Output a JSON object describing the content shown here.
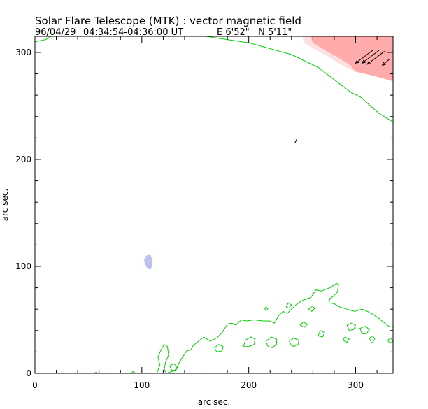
{
  "chart_data": {
    "type": "scatter",
    "title": "Solar Flare Telescope (MTK) : vector magnetic field",
    "subtitle": {
      "date": "96/04/29",
      "time_range": "04:34:54-04:36:00 UT",
      "position": "E 6'52\"   N 5'11\""
    },
    "xlabel": "arc sec.",
    "ylabel": "arc sec.",
    "xlim": [
      0,
      335
    ],
    "ylim": [
      0,
      315
    ],
    "x_ticks": [
      0,
      100,
      200,
      300
    ],
    "y_ticks": [
      0,
      100,
      200,
      300
    ],
    "x_tick_labels": [
      "0",
      "100",
      "200",
      "300"
    ],
    "y_tick_labels": [
      "0",
      "100",
      "200",
      "300"
    ],
    "grid": false,
    "colors": {
      "contour": "#00d000",
      "positive_field": "#ff8080",
      "negative_field": "#9fa6e6",
      "vectors": "#000000"
    },
    "limb_contour": [
      [
        0,
        310
      ],
      [
        10,
        312
      ],
      [
        15,
        315
      ],
      [
        160,
        315
      ],
      [
        200,
        309
      ],
      [
        240,
        298
      ],
      [
        265,
        286
      ],
      [
        282,
        273
      ],
      [
        295,
        263
      ],
      [
        305,
        258
      ],
      [
        315,
        249
      ],
      [
        322,
        243
      ],
      [
        330,
        238
      ],
      [
        335,
        235
      ]
    ],
    "lower_contour": [
      [
        114,
        0
      ],
      [
        117,
        8
      ],
      [
        115,
        15
      ],
      [
        118,
        22
      ],
      [
        121,
        27
      ],
      [
        124,
        25
      ],
      [
        125,
        17
      ],
      [
        122,
        10
      ],
      [
        121,
        4
      ],
      [
        123,
        0
      ],
      [
        132,
        3
      ],
      [
        135,
        10
      ],
      [
        138,
        15
      ],
      [
        142,
        21
      ],
      [
        146,
        22
      ],
      [
        148,
        26
      ],
      [
        153,
        30
      ],
      [
        158,
        34
      ],
      [
        164,
        30
      ],
      [
        170,
        33
      ],
      [
        175,
        38
      ],
      [
        180,
        46
      ],
      [
        184,
        47
      ],
      [
        188,
        45
      ],
      [
        193,
        50
      ],
      [
        198,
        49
      ],
      [
        205,
        50
      ],
      [
        213,
        49
      ],
      [
        219,
        49
      ],
      [
        224,
        47
      ],
      [
        228,
        54
      ],
      [
        232,
        58
      ],
      [
        236,
        56
      ],
      [
        240,
        60
      ],
      [
        244,
        64
      ],
      [
        250,
        68
      ],
      [
        258,
        71
      ],
      [
        263,
        78
      ],
      [
        268,
        77
      ],
      [
        273,
        79
      ],
      [
        276,
        80
      ],
      [
        282,
        84
      ],
      [
        284,
        83
      ],
      [
        283,
        76
      ],
      [
        279,
        72
      ],
      [
        276,
        70
      ],
      [
        275,
        66
      ],
      [
        280,
        65
      ],
      [
        285,
        62
      ],
      [
        292,
        60
      ],
      [
        299,
        58
      ],
      [
        306,
        60
      ],
      [
        311,
        58
      ],
      [
        315,
        56
      ],
      [
        321,
        52
      ],
      [
        326,
        48
      ],
      [
        331,
        44
      ],
      [
        335,
        43
      ]
    ],
    "small_contours": [
      [
        [
          218,
          25
        ],
        [
          216,
          30
        ],
        [
          221,
          34
        ],
        [
          226,
          32
        ],
        [
          226,
          27
        ],
        [
          222,
          24
        ],
        [
          218,
          25
        ]
      ],
      [
        [
          240,
          26
        ],
        [
          238,
          30
        ],
        [
          242,
          33
        ],
        [
          247,
          31
        ],
        [
          246,
          27
        ],
        [
          242,
          25
        ],
        [
          240,
          26
        ]
      ],
      [
        [
          170,
          20
        ],
        [
          168,
          24
        ],
        [
          172,
          27
        ],
        [
          176,
          25
        ],
        [
          175,
          21
        ],
        [
          170,
          20
        ]
      ],
      [
        [
          195,
          25
        ],
        [
          197,
          31
        ],
        [
          202,
          34
        ],
        [
          206,
          32
        ],
        [
          205,
          27
        ],
        [
          200,
          25
        ],
        [
          195,
          25
        ]
      ],
      [
        [
          288,
          31
        ],
        [
          290,
          34
        ],
        [
          294,
          32
        ],
        [
          292,
          29
        ],
        [
          288,
          31
        ]
      ],
      [
        [
          294,
          40
        ],
        [
          292,
          45
        ],
        [
          296,
          47
        ],
        [
          300,
          45
        ],
        [
          298,
          41
        ],
        [
          294,
          40
        ]
      ],
      [
        [
          306,
          37
        ],
        [
          304,
          42
        ],
        [
          309,
          44
        ],
        [
          313,
          41
        ],
        [
          310,
          37
        ],
        [
          306,
          37
        ]
      ],
      [
        [
          315,
          28
        ],
        [
          313,
          33
        ],
        [
          316,
          35
        ],
        [
          318,
          32
        ],
        [
          315,
          28
        ]
      ],
      [
        [
          248,
          45
        ],
        [
          251,
          48
        ],
        [
          255,
          46
        ],
        [
          252,
          43
        ],
        [
          248,
          45
        ]
      ],
      [
        [
          265,
          35
        ],
        [
          267,
          40
        ],
        [
          271,
          38
        ],
        [
          269,
          34
        ],
        [
          265,
          35
        ]
      ],
      [
        [
          256,
          60
        ],
        [
          259,
          63
        ],
        [
          262,
          61
        ],
        [
          259,
          58
        ],
        [
          256,
          60
        ]
      ],
      [
        [
          235,
          62
        ],
        [
          237,
          66
        ],
        [
          240,
          64
        ],
        [
          238,
          61
        ],
        [
          235,
          62
        ]
      ],
      [
        [
          128,
          3
        ],
        [
          126,
          7
        ],
        [
          130,
          9
        ],
        [
          133,
          6
        ],
        [
          131,
          3
        ],
        [
          128,
          3
        ]
      ],
      [
        [
          215,
          60
        ],
        [
          216,
          62
        ],
        [
          218,
          61
        ],
        [
          217,
          59
        ],
        [
          215,
          60
        ]
      ],
      [
        [
          332,
          28
        ],
        [
          330,
          31
        ],
        [
          333,
          33
        ],
        [
          335,
          30
        ],
        [
          332,
          28
        ]
      ],
      [
        [
          90,
          0
        ],
        [
          92,
          2
        ],
        [
          94,
          0
        ]
      ],
      [
        [
          55,
          0
        ],
        [
          57,
          1
        ],
        [
          59,
          0
        ]
      ]
    ],
    "positive_region": [
      [
        250,
        315
      ],
      [
        335,
        315
      ],
      [
        335,
        273
      ],
      [
        325,
        276
      ],
      [
        313,
        279
      ],
      [
        300,
        282
      ],
      [
        287,
        288
      ],
      [
        276,
        295
      ],
      [
        262,
        303
      ],
      [
        252,
        309
      ],
      [
        250,
        315
      ]
    ],
    "negative_patch": [
      [
        103,
        102
      ],
      [
        102,
        106
      ],
      [
        104,
        110
      ],
      [
        108,
        111
      ],
      [
        110,
        106
      ],
      [
        110,
        101
      ],
      [
        108,
        97
      ],
      [
        105,
        98
      ],
      [
        103,
        102
      ]
    ],
    "vectors": [
      [
        {
          "x": 316,
          "y": 302
        },
        {
          "x": 300,
          "y": 290
        }
      ],
      [
        {
          "x": 322,
          "y": 302
        },
        {
          "x": 306,
          "y": 290
        }
      ],
      [
        {
          "x": 327,
          "y": 301
        },
        {
          "x": 311,
          "y": 289
        }
      ],
      [
        {
          "x": 332,
          "y": 294
        },
        {
          "x": 325,
          "y": 288
        }
      ],
      [
        {
          "x": 243,
          "y": 215
        },
        {
          "x": 245,
          "y": 219
        }
      ]
    ]
  }
}
